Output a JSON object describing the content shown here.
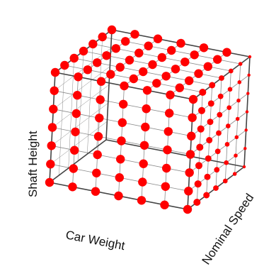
{
  "axes": {
    "x_label": "Car Weight",
    "y_label": "Nominal Speed",
    "z_label": "Shaft Height"
  },
  "grid": {
    "divisions": 6,
    "points_per_edge": 7
  },
  "colors": {
    "background": "#ffffff",
    "cube_edge": "#444444",
    "grid_line": "#8a8a8a",
    "point": "#ff0000"
  }
}
